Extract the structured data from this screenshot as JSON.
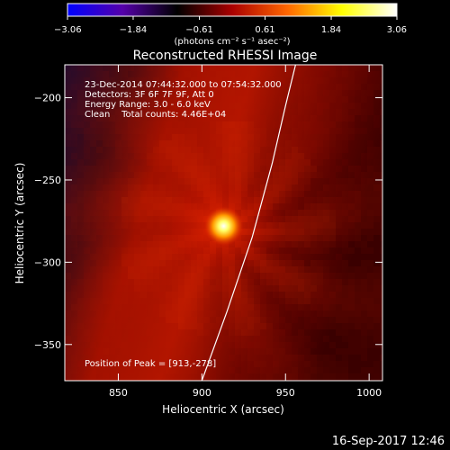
{
  "chart_data": {
    "type": "heatmap",
    "title": "Reconstructed RHESSI Image",
    "xlabel": "Heliocentric X (arcsec)",
    "ylabel": "Heliocentric Y (arcsec)",
    "xlim": [
      818,
      1008
    ],
    "ylim": [
      -372,
      -180
    ],
    "x_ticks": [
      850,
      900,
      950,
      1000
    ],
    "y_ticks": [
      -200,
      -250,
      -300,
      -350
    ],
    "colorbar": {
      "min": -3.06,
      "max": 3.06,
      "ticks": [
        -3.06,
        -1.84,
        -0.61,
        0.61,
        1.84,
        3.06
      ],
      "tick_labels": [
        "−3.06",
        "−1.84",
        "−0.61",
        "0.61",
        "1.84",
        "3.06"
      ],
      "unit": "(photons cm⁻² s⁻¹ asec⁻²)",
      "colors": [
        "#0000ff",
        "#5500aa",
        "#000000",
        "#aa0000",
        "#ff6600",
        "#ffff00",
        "#ffffff"
      ]
    },
    "annotations": [
      "23-Dec-2014 07:44:32.000 to 07:54:32.000",
      "Detectors: 3F 6F 7F 9F, Att 0",
      "Energy Range: 3.0 - 6.0 keV",
      "Clean    Total counts: 4.46E+04"
    ],
    "peak_label": "Position of Peak = [913,-278]",
    "peak": {
      "x": 913,
      "y": -278,
      "value": 3.06
    },
    "limb": [
      {
        "x": 900,
        "y": -372
      },
      {
        "x": 915,
        "y": -330
      },
      {
        "x": 930,
        "y": -285
      },
      {
        "x": 942,
        "y": -240
      },
      {
        "x": 950,
        "y": -205
      },
      {
        "x": 956,
        "y": -180
      }
    ]
  },
  "footer": {
    "timestamp": "16-Sep-2017 12:46"
  }
}
